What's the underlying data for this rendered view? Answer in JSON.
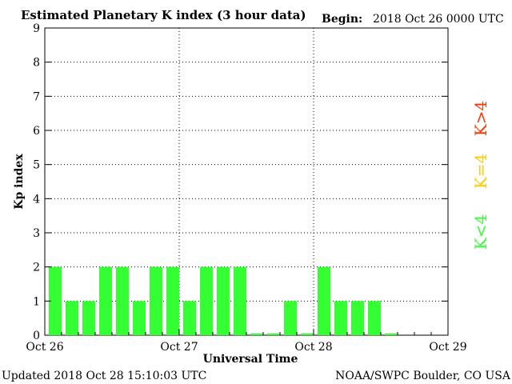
{
  "chart_data": {
    "type": "bar",
    "title": "Estimated Planetary K index (3 hour data)",
    "begin_label": "Begin:",
    "begin_value": "2018 Oct 26 0000 UTC",
    "xlabel": "Universal Time",
    "ylabel": "Kp index",
    "ylim": [
      0,
      9
    ],
    "yticks": [
      "0",
      "1",
      "2",
      "3",
      "4",
      "5",
      "6",
      "7",
      "8",
      "9"
    ],
    "x_tick_labels": [
      "Oct 26",
      "Oct 27",
      "Oct 28",
      "Oct 29"
    ],
    "grid": true,
    "bins_per_day": 8,
    "values": [
      2,
      1,
      1,
      2,
      2,
      1,
      2,
      2,
      1,
      2,
      2,
      2,
      0.05,
      0.05,
      1,
      0.05,
      2,
      1,
      1,
      1,
      0.05
    ],
    "bar_color": "#33ff33",
    "legend": [
      {
        "label": "K<4",
        "color": "#33ff33"
      },
      {
        "label": "K=4",
        "color": "#ffcc00"
      },
      {
        "label": "K>4",
        "color": "#ff3300"
      }
    ]
  },
  "footer": {
    "updated": "Updated 2018 Oct 28 15:10:03 UTC",
    "credit": "NOAA/SWPC Boulder, CO USA"
  }
}
